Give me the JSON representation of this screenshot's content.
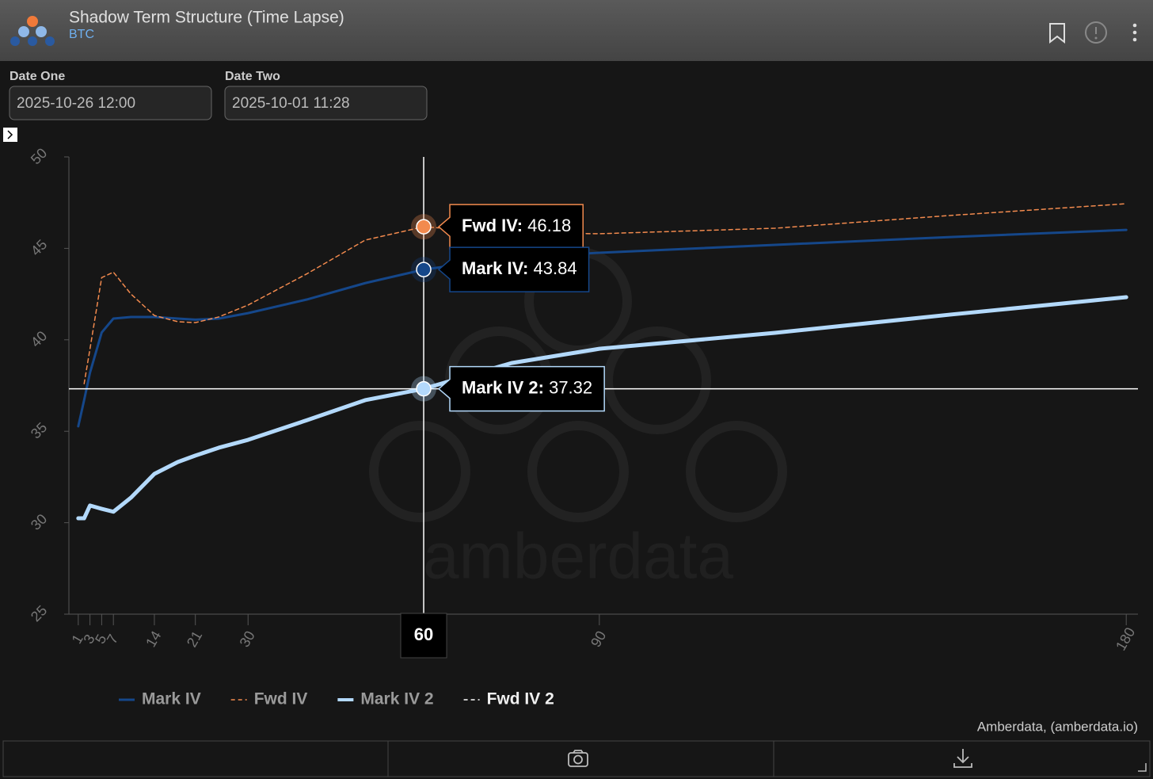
{
  "header": {
    "title": "Shadow Term Structure (Time Lapse)",
    "subtitle": "BTC"
  },
  "inputs": [
    {
      "label": "Date One",
      "value": "2025-10-26 12:00"
    },
    {
      "label": "Date Two",
      "value": "2025-10-01 11:28"
    }
  ],
  "chart_data": {
    "type": "line",
    "x": [
      1,
      2,
      3,
      5,
      7,
      10,
      14,
      18,
      21,
      25,
      30,
      40,
      50,
      60,
      75,
      90,
      120,
      150,
      180
    ],
    "series": [
      {
        "name": "Mark IV",
        "color": "#15478a",
        "dash": false,
        "width": 3,
        "values": [
          35.27,
          36.7,
          38.2,
          40.4,
          41.16,
          41.25,
          41.25,
          41.16,
          41.1,
          41.16,
          41.46,
          42.2,
          43.1,
          43.84,
          44.5,
          44.76,
          45.19,
          45.62,
          46.01
        ]
      },
      {
        "name": "Fwd IV",
        "color": "#f28a4e",
        "dash": true,
        "width": 1.5,
        "values": [
          null,
          37.6,
          39.5,
          43.4,
          43.7,
          42.5,
          41.33,
          40.99,
          40.94,
          41.25,
          41.9,
          43.6,
          45.45,
          46.18,
          45.84,
          45.8,
          46.1,
          46.8,
          47.44
        ]
      },
      {
        "name": "Mark IV 2",
        "color": "#b3d9fb",
        "dash": false,
        "width": 5,
        "values": [
          30.24,
          30.24,
          30.94,
          30.76,
          30.6,
          31.37,
          32.67,
          33.32,
          33.67,
          34.1,
          34.53,
          35.6,
          36.7,
          37.32,
          38.73,
          39.51,
          40.38,
          41.38,
          42.33
        ]
      },
      {
        "name": "Fwd IV 2",
        "color": "#ffffff",
        "dash": true,
        "width": 1.5,
        "values": [
          null,
          null,
          null,
          null,
          null,
          null,
          null,
          null,
          null,
          null,
          null,
          null,
          null,
          null,
          null,
          null,
          null,
          null,
          null
        ]
      }
    ],
    "xlim": [
      -0.6,
      182
    ],
    "xticks": [
      1,
      3,
      5,
      7,
      14,
      21,
      30,
      90,
      180
    ],
    "ylim": [
      25,
      50
    ],
    "yticks": [
      25,
      30,
      35,
      40,
      45,
      50
    ],
    "crosshair": {
      "x": 60,
      "y": 37.32,
      "tooltips": [
        {
          "label": "Fwd IV:",
          "value": 46.18,
          "color": "#f28a4e"
        },
        {
          "label": "Mark IV:",
          "value": 43.84,
          "color": "#15478a"
        },
        {
          "label": "Mark IV 2:",
          "value": 37.32,
          "color": "#b3d9fb"
        }
      ]
    },
    "watermark": "amberdata",
    "credit": "Amberdata, (amberdata.io)"
  }
}
